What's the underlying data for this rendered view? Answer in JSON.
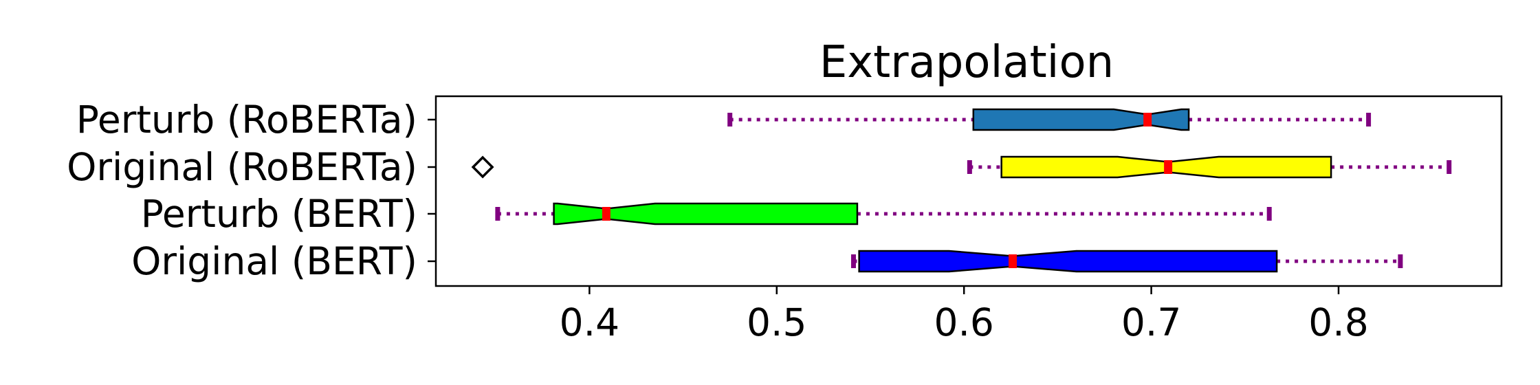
{
  "chart_data": {
    "type": "boxplot",
    "title": "Extrapolation",
    "xlabel": "",
    "ylabel": "",
    "xlim": [
      0.318,
      0.887
    ],
    "xticks": [
      0.4,
      0.5,
      0.6,
      0.7,
      0.8
    ],
    "xtick_labels": [
      "0.4",
      "0.5",
      "0.6",
      "0.7",
      "0.8"
    ],
    "grid": false,
    "whisker_color": "#800080",
    "median_color": "#ff0000",
    "series": [
      {
        "label": "Perturb (RoBERTa)",
        "color": "#1f77b4",
        "whislo": 0.475,
        "q1": 0.605,
        "notch_lo": 0.68,
        "median": 0.698,
        "notch_hi": 0.716,
        "q3": 0.72,
        "whishi": 0.816,
        "fliers": []
      },
      {
        "label": "Original (RoBERTa)",
        "color": "#ffff00",
        "whislo": 0.603,
        "q1": 0.62,
        "notch_lo": 0.682,
        "median": 0.709,
        "notch_hi": 0.736,
        "q3": 0.796,
        "whishi": 0.859,
        "fliers": [
          0.343
        ]
      },
      {
        "label": "Perturb (BERT)",
        "color": "#00ff00",
        "whislo": 0.351,
        "q1": 0.381,
        "notch_lo": 0.383,
        "median": 0.409,
        "notch_hi": 0.435,
        "q3": 0.543,
        "whishi": 0.763,
        "fliers": []
      },
      {
        "label": "Original (BERT)",
        "color": "#0000ff",
        "whislo": 0.541,
        "q1": 0.544,
        "notch_lo": 0.592,
        "median": 0.626,
        "notch_hi": 0.66,
        "q3": 0.767,
        "whishi": 0.833,
        "fliers": []
      }
    ]
  }
}
